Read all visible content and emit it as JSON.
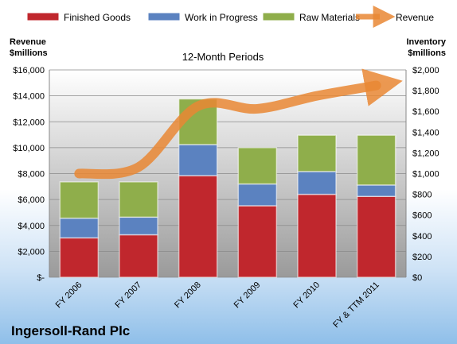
{
  "chart_data": {
    "type": "bar",
    "title": "Ingersoll-Rand Plc",
    "subtitle": "12-Month Periods",
    "categories": [
      "FY 2006",
      "FY 2007",
      "FY 2008",
      "FY 2009",
      "FY 2010",
      "FY & TTM 2011"
    ],
    "series": [
      {
        "name": "Finished Goods",
        "axis": "right",
        "color": "#c0272d",
        "values": [
          380,
          410,
          980,
          690,
          800,
          780
        ]
      },
      {
        "name": "Work in Progress",
        "axis": "right",
        "color": "#5b82c0",
        "values": [
          190,
          170,
          300,
          210,
          220,
          110
        ]
      },
      {
        "name": "Raw Materials",
        "axis": "right",
        "color": "#8fae4b",
        "values": [
          350,
          340,
          440,
          350,
          350,
          480
        ]
      },
      {
        "name": "Revenue",
        "axis": "left",
        "type": "line",
        "color": "#e98734",
        "values": [
          8000,
          8500,
          13200,
          13000,
          14000,
          14800
        ]
      }
    ],
    "left_axis": {
      "label": "Revenue $millions",
      "min": 0,
      "max": 16000,
      "step": 2000,
      "ticks": [
        "$-",
        "$2,000",
        "$4,000",
        "$6,000",
        "$8,000",
        "$10,000",
        "$12,000",
        "$14,000",
        "$16,000"
      ]
    },
    "right_axis": {
      "label": "Inventory $millions",
      "min": 0,
      "max": 2000,
      "step": 200,
      "ticks": [
        "$0",
        "$200",
        "$400",
        "$600",
        "$800",
        "$1,000",
        "$1,200",
        "$1,400",
        "$1,600",
        "$1,800",
        "$2,000"
      ]
    },
    "legend_position": "top",
    "grid": true
  }
}
